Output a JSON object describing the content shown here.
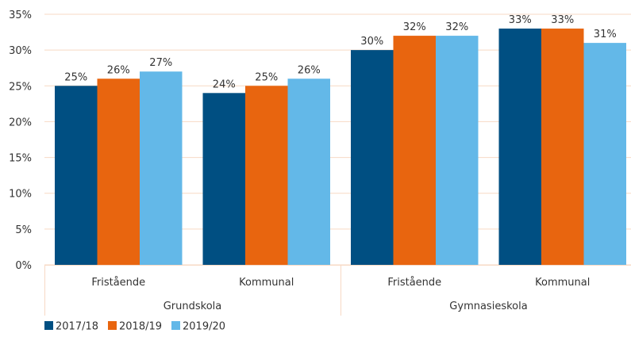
{
  "chart_data": {
    "type": "bar",
    "categories": [
      "Fristående",
      "Kommunal",
      "Fristående",
      "Kommunal"
    ],
    "groups": [
      {
        "label": "Grundskola",
        "categories": [
          0,
          1
        ]
      },
      {
        "label": "Gymnasieskola",
        "categories": [
          2,
          3
        ]
      }
    ],
    "series": [
      {
        "name": "2017/18",
        "values": [
          25,
          24,
          30,
          33
        ],
        "labels": [
          "25%",
          "24%",
          "30%",
          "33%"
        ]
      },
      {
        "name": "2018/19",
        "values": [
          26,
          25,
          32,
          33
        ],
        "labels": [
          "26%",
          "25%",
          "32%",
          "33%"
        ]
      },
      {
        "name": "2019/20",
        "values": [
          27,
          26,
          32,
          31
        ],
        "labels": [
          "27%",
          "26%",
          "32%",
          "31%"
        ]
      }
    ],
    "colors": [
      "#004f82",
      "#e8650f",
      "#63b8e8"
    ],
    "ylim": [
      0,
      35
    ],
    "yticks": [
      "0%",
      "5%",
      "10%",
      "15%",
      "20%",
      "25%",
      "30%",
      "35%"
    ],
    "grid": true,
    "gridColor": "#f7d9c4",
    "legend_position": "bottom-left"
  }
}
